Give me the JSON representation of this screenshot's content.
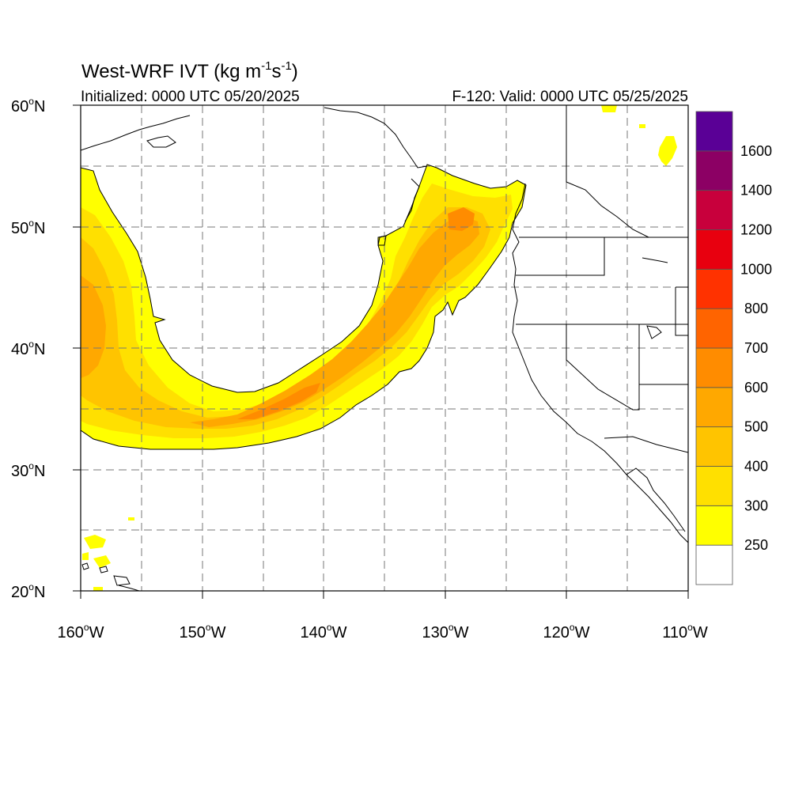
{
  "header": {
    "title_main": "West-WRF IVT (kg m",
    "title_exp1": "-1",
    "title_mid": "s",
    "title_exp2": "-1",
    "title_end": ")",
    "initialized": "Initialized: 0000 UTC 05/20/2025",
    "valid": "F-120: Valid: 0000 UTC 05/25/2025"
  },
  "axes": {
    "lat_labels": [
      "60",
      "50",
      "40",
      "30",
      "20"
    ],
    "lat_suffix": "N",
    "lon_labels": [
      "160",
      "150",
      "140",
      "130",
      "120",
      "110"
    ],
    "lon_suffix": "W",
    "degree_symbol": "o",
    "lat_range": [
      20,
      60
    ],
    "lon_range": [
      -160,
      -110
    ],
    "grid": "dashed, every 5 degrees"
  },
  "colorbar": {
    "labels": [
      "1600",
      "1400",
      "1200",
      "1000",
      "800",
      "700",
      "600",
      "500",
      "400",
      "300",
      "250"
    ],
    "colors_bottom_to_top": [
      "#ffffff",
      "#ffff00",
      "#ffe000",
      "#ffc400",
      "#ffa800",
      "#ff8c00",
      "#ff6400",
      "#ff3200",
      "#e8000f",
      "#c8003c",
      "#8c0064",
      "#5a0096"
    ]
  },
  "chart_data": {
    "type": "filled-contour-map",
    "variable": "IVT",
    "units": "kg m-1 s-1",
    "levels": [
      250,
      300,
      400,
      500,
      600,
      700,
      800,
      1000,
      1200,
      1400,
      1600
    ],
    "domain": {
      "lon": [
        -160,
        -110
      ],
      "lat": [
        20,
        60
      ]
    },
    "feature": "atmospheric river arcing from ~55N 160W south to ~32N 150W then northeast to ~53N 128W",
    "max_band": "600-700 near 35N 145W and 50N 128W"
  }
}
